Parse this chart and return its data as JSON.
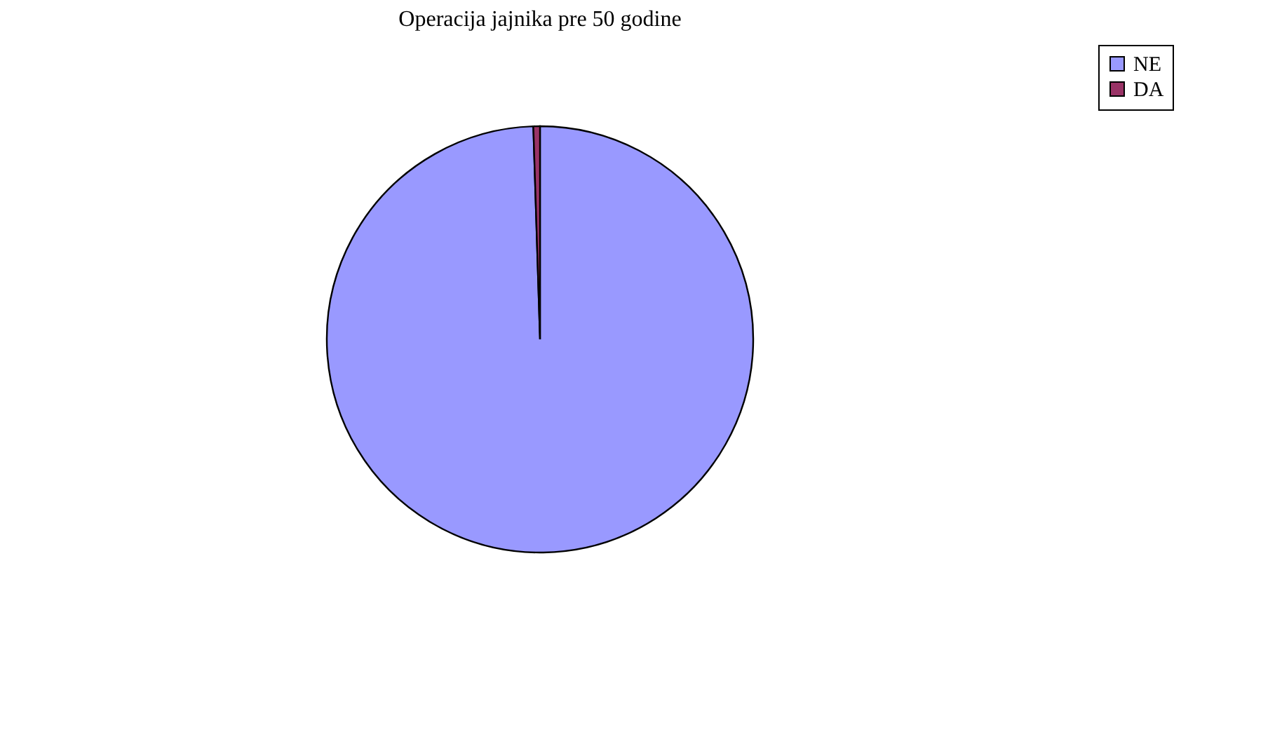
{
  "chart_data": {
    "type": "pie",
    "title": "Operacija jajnika pre 50 godine",
    "categories": [
      "NE",
      "DA"
    ],
    "values": [
      99.5,
      0.5
    ],
    "colors": [
      "#9999ff",
      "#993366"
    ],
    "legend": "right"
  }
}
